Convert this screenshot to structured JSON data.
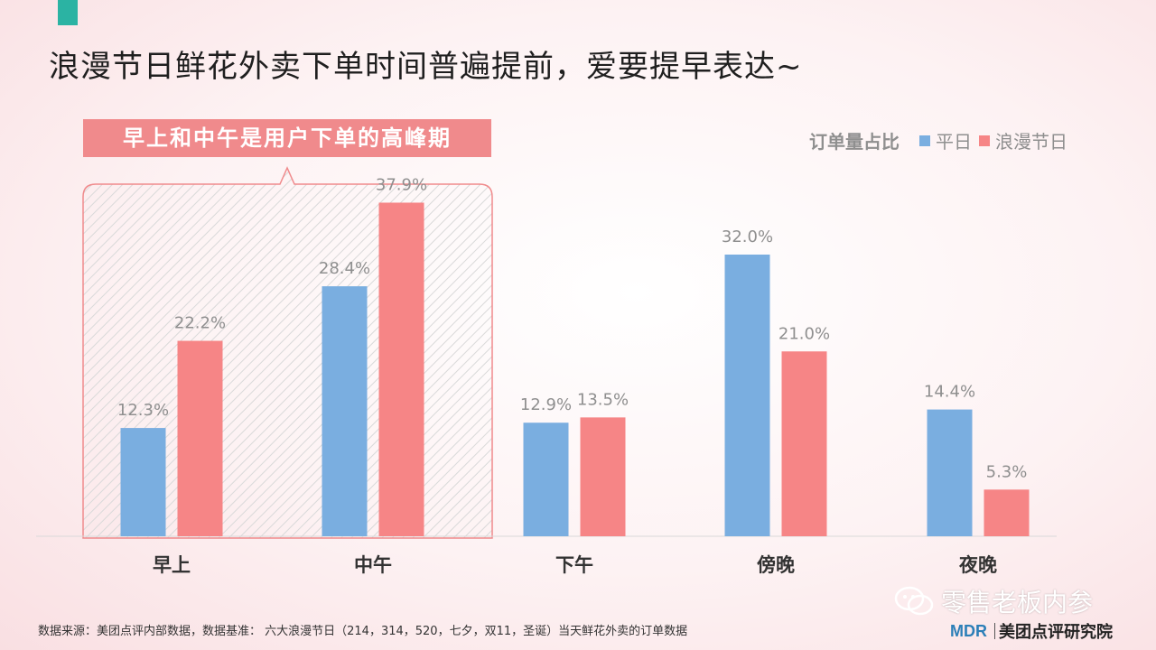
{
  "slide": {
    "title": "浪漫节日鲜花外卖下单时间普遍提前，爱要提早表达~",
    "highlight_text": "早上和中午是用户下单的高峰期",
    "footnote": "数据来源：美团点评内部数据，数据基准：   六大浪漫节日（214，314，520，七夕，双11，圣诞）当天鲜花外卖的订单数据",
    "brand_mark": "MDR",
    "brand_name": "美团点评研究院",
    "watermark": "零售老板内参"
  },
  "colors": {
    "weekday": "#7aaee0",
    "festival": "#f68586",
    "accent": "#2bb3a3",
    "highlight": "#f08a8c",
    "label": "#8f8f8f"
  },
  "chart_data": {
    "type": "bar",
    "legend_title": "订单量占比",
    "legend_position": "top-right",
    "categories": [
      "早上",
      "中午",
      "下午",
      "傍晚",
      "夜晚"
    ],
    "series": [
      {
        "name": "平日",
        "values": [
          12.3,
          28.4,
          12.9,
          32.0,
          14.4
        ],
        "labels": [
          "12.3%",
          "28.4%",
          "12.9%",
          "32.0%",
          "14.4%"
        ]
      },
      {
        "name": "浪漫节日",
        "values": [
          22.2,
          37.9,
          13.5,
          21.0,
          5.3
        ],
        "labels": [
          "22.2%",
          "37.9%",
          "13.5%",
          "21.0%",
          "5.3%"
        ]
      }
    ],
    "ylim": [
      0,
      40
    ],
    "grid": false
  }
}
